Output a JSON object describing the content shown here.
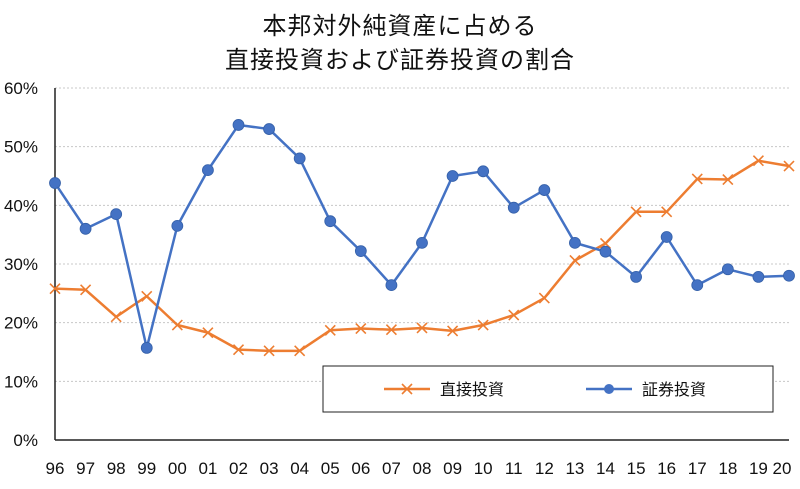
{
  "chart_data": {
    "type": "line",
    "title": [
      "本邦対外純資産に占める",
      "直接投資および証券投資の割合"
    ],
    "categories": [
      "96",
      "97",
      "98",
      "99",
      "00",
      "01",
      "02",
      "03",
      "04",
      "05",
      "06",
      "07",
      "08",
      "09",
      "10",
      "11",
      "12",
      "13",
      "14",
      "15",
      "16",
      "17",
      "18",
      "19",
      "20"
    ],
    "ylim": [
      0,
      60
    ],
    "yticks": [
      0,
      10,
      20,
      30,
      40,
      50,
      60
    ],
    "ytick_labels": [
      "0%",
      "10%",
      "20%",
      "30%",
      "40%",
      "50%",
      "60%"
    ],
    "grid": true,
    "legend_position": "bottom-right",
    "series": [
      {
        "name": "直接投資",
        "color": "#ED7D31",
        "marker": "x",
        "values": [
          25.8,
          25.6,
          21.0,
          24.5,
          19.6,
          18.3,
          15.4,
          15.2,
          15.2,
          18.7,
          19.0,
          18.8,
          19.1,
          18.6,
          19.6,
          21.3,
          24.2,
          30.6,
          33.5,
          38.9,
          38.9,
          44.5,
          44.4,
          47.6,
          46.7
        ]
      },
      {
        "name": "証券投資",
        "color": "#4472C4",
        "marker": "circle",
        "values": [
          43.8,
          36.0,
          38.5,
          15.7,
          36.5,
          46.0,
          53.7,
          53.0,
          48.0,
          37.3,
          32.2,
          26.4,
          33.6,
          45.0,
          45.8,
          39.6,
          42.6,
          33.6,
          32.1,
          27.8,
          34.6,
          26.4,
          29.1,
          27.8,
          28.0
        ]
      }
    ]
  }
}
